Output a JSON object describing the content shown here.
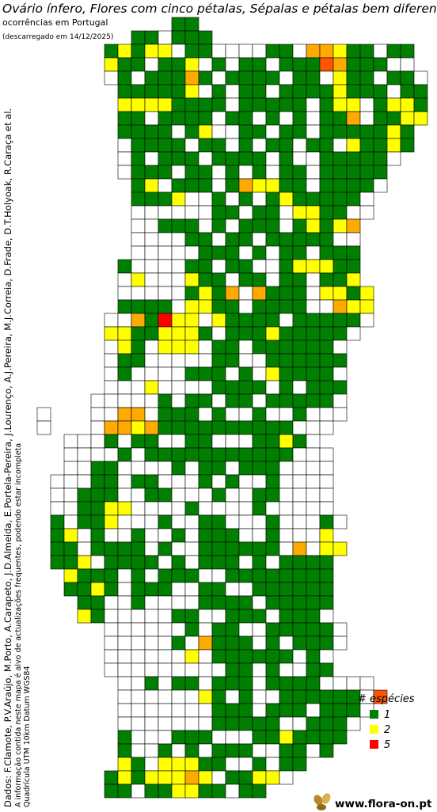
{
  "header": {
    "title": "Ovário ínfero, Flores com cinco pétalas, Sépalas e pétalas bem diferenciadas",
    "subtitle": "ocorrências em Portugal",
    "date": "(descarregado em 14/12/2025)"
  },
  "credits": {
    "data": "Dados: F.Clamote, P.V.Araújo, M.Porto, A.Carapeto, J.D.Almeida, E.Portela-Pereira, J.Lourenço, A.J.Pereira, M.J.Correia, D.Frade, D.T.Holyoak, R.Caraça et al.",
    "note": "A informação contida neste mapa é alvo de actualizações frequentes, podendo estar incompleta",
    "grid": "Quadrícula UTM 10km Datum WGS84"
  },
  "legend": {
    "title": "# espécies",
    "items": [
      {
        "value": 1,
        "color": "#007f00"
      },
      {
        "value": 2,
        "color": "#ffff00"
      },
      {
        "value": 5,
        "color": "#ff0000"
      }
    ]
  },
  "logo": "www.flora-on.pt",
  "grid": {
    "rows": [
      [
        null,
        null,
        null,
        null,
        null,
        null,
        null,
        null,
        null,
        null,
        1,
        1
      ],
      [
        null,
        null,
        null,
        null,
        null,
        null,
        null,
        1,
        1,
        0,
        1,
        1,
        1
      ],
      [
        null,
        null,
        null,
        null,
        null,
        1,
        2,
        1,
        2,
        2,
        0,
        1,
        1,
        0,
        0,
        0,
        0,
        1,
        1,
        0,
        3,
        3,
        2,
        1,
        1,
        0,
        1,
        1
      ],
      [
        null,
        null,
        null,
        null,
        null,
        2,
        1,
        1,
        0,
        1,
        1,
        2,
        0,
        1,
        0,
        1,
        1,
        0,
        1,
        1,
        1,
        4,
        3,
        1,
        1,
        1,
        0,
        0
      ],
      [
        null,
        null,
        null,
        null,
        null,
        0,
        1,
        0,
        1,
        1,
        1,
        3,
        1,
        0,
        1,
        1,
        1,
        1,
        0,
        1,
        1,
        0,
        2,
        1,
        1,
        0,
        1,
        1,
        0
      ],
      [
        null,
        null,
        null,
        null,
        null,
        null,
        1,
        1,
        1,
        1,
        1,
        2,
        0,
        1,
        0,
        1,
        1,
        0,
        1,
        1,
        1,
        1,
        2,
        1,
        1,
        1,
        0,
        1,
        1
      ],
      [
        null,
        null,
        null,
        null,
        null,
        null,
        2,
        2,
        2,
        2,
        1,
        1,
        1,
        1,
        0,
        1,
        1,
        1,
        1,
        1,
        0,
        1,
        2,
        2,
        0,
        1,
        2,
        2,
        1
      ],
      [
        null,
        null,
        null,
        null,
        null,
        null,
        1,
        1,
        0,
        1,
        1,
        1,
        1,
        0,
        1,
        1,
        0,
        1,
        0,
        1,
        0,
        1,
        1,
        3,
        0,
        1,
        1,
        2,
        2
      ],
      [
        null,
        null,
        null,
        null,
        null,
        null,
        1,
        1,
        1,
        1,
        0,
        1,
        2,
        0,
        0,
        1,
        1,
        0,
        1,
        1,
        0,
        1,
        1,
        1,
        1,
        1,
        2,
        1
      ],
      [
        null,
        null,
        null,
        null,
        null,
        null,
        0,
        1,
        1,
        1,
        1,
        0,
        1,
        1,
        0,
        1,
        0,
        1,
        1,
        0,
        1,
        1,
        0,
        2,
        1,
        1,
        2,
        1
      ],
      [
        null,
        null,
        null,
        null,
        null,
        null,
        0,
        1,
        0,
        1,
        1,
        1,
        0,
        1,
        1,
        1,
        1,
        0,
        1,
        0,
        0,
        1,
        1,
        1,
        1,
        1,
        0
      ],
      [
        null,
        null,
        null,
        null,
        null,
        null,
        0,
        1,
        1,
        1,
        0,
        1,
        1,
        0,
        1,
        0,
        1,
        0,
        1,
        1,
        0,
        1,
        1,
        1,
        1,
        1
      ],
      [
        null,
        null,
        null,
        null,
        null,
        null,
        null,
        1,
        2,
        0,
        1,
        1,
        1,
        0,
        1,
        3,
        2,
        2,
        1,
        1,
        0,
        1,
        1,
        1,
        1,
        0
      ],
      [
        null,
        null,
        null,
        null,
        null,
        null,
        null,
        1,
        1,
        1,
        2,
        0,
        0,
        1,
        0,
        1,
        0,
        1,
        2,
        1,
        1,
        1,
        1,
        1,
        0
      ],
      [
        null,
        null,
        null,
        null,
        null,
        null,
        null,
        0,
        0,
        0,
        0,
        0,
        0,
        1,
        1,
        0,
        1,
        1,
        0,
        2,
        2,
        1,
        1,
        0,
        0
      ],
      [
        null,
        null,
        null,
        null,
        null,
        null,
        null,
        0,
        0,
        1,
        1,
        1,
        0,
        1,
        0,
        1,
        1,
        1,
        0,
        1,
        2,
        1,
        2,
        3
      ],
      [
        null,
        null,
        null,
        null,
        null,
        null,
        null,
        0,
        0,
        0,
        0,
        1,
        1,
        0,
        1,
        1,
        0,
        1,
        1,
        1,
        1,
        1,
        0,
        0
      ],
      [
        null,
        null,
        null,
        null,
        null,
        null,
        null,
        0,
        0,
        0,
        0,
        0,
        1,
        1,
        1,
        0,
        1,
        0,
        1,
        1,
        0,
        1,
        1,
        1
      ],
      [
        null,
        null,
        null,
        null,
        null,
        null,
        1,
        0,
        0,
        0,
        0,
        1,
        1,
        0,
        1,
        1,
        0,
        0,
        1,
        2,
        2,
        2,
        1,
        1
      ],
      [
        null,
        null,
        null,
        null,
        null,
        null,
        0,
        2,
        0,
        0,
        0,
        2,
        1,
        1,
        0,
        1,
        1,
        0,
        1,
        1,
        0,
        1,
        1,
        2
      ],
      [
        null,
        null,
        null,
        null,
        null,
        null,
        0,
        0,
        0,
        0,
        0,
        1,
        2,
        1,
        3,
        0,
        3,
        1,
        1,
        1,
        0,
        2,
        2,
        1,
        2
      ],
      [
        null,
        null,
        null,
        null,
        null,
        null,
        1,
        1,
        1,
        1,
        0,
        2,
        2,
        1,
        1,
        0,
        1,
        1,
        1,
        1,
        0,
        0,
        3,
        2,
        2
      ],
      [
        null,
        null,
        null,
        null,
        null,
        0,
        0,
        3,
        1,
        5,
        2,
        2,
        0,
        2,
        1,
        1,
        1,
        1,
        0,
        1,
        1,
        1,
        1,
        1,
        0
      ],
      [
        null,
        null,
        null,
        null,
        null,
        2,
        2,
        1,
        1,
        2,
        2,
        2,
        1,
        0,
        1,
        1,
        1,
        2,
        1,
        1,
        1,
        1,
        1,
        0
      ],
      [
        null,
        null,
        null,
        null,
        null,
        0,
        2,
        1,
        0,
        2,
        2,
        2,
        0,
        1,
        1,
        0,
        1,
        1,
        1,
        1,
        1,
        1,
        0
      ],
      [
        null,
        null,
        null,
        null,
        null,
        0,
        1,
        1,
        0,
        0,
        0,
        0,
        0,
        1,
        1,
        0,
        0,
        1,
        1,
        1,
        1,
        1,
        1
      ],
      [
        null,
        null,
        null,
        null,
        null,
        0,
        1,
        0,
        0,
        0,
        0,
        1,
        1,
        1,
        0,
        1,
        0,
        2,
        1,
        1,
        1,
        1,
        0
      ],
      [
        null,
        null,
        null,
        null,
        null,
        0,
        0,
        0,
        2,
        0,
        0,
        0,
        0,
        1,
        1,
        1,
        1,
        0,
        1,
        0,
        1,
        1,
        1
      ],
      [
        null,
        null,
        null,
        null,
        0,
        0,
        0,
        0,
        0,
        1,
        0,
        1,
        1,
        0,
        1,
        1,
        0,
        1,
        1,
        1,
        1,
        1,
        0
      ],
      [
        0,
        null,
        null,
        null,
        0,
        0,
        3,
        3,
        0,
        1,
        1,
        1,
        0,
        1,
        0,
        0,
        1,
        0,
        0,
        1,
        0,
        0,
        0
      ],
      [
        0,
        null,
        null,
        null,
        0,
        3,
        3,
        2,
        3,
        1,
        1,
        1,
        1,
        1,
        1,
        1,
        1,
        1,
        1,
        0,
        0,
        0
      ],
      [
        null,
        null,
        0,
        0,
        0,
        1,
        0,
        1,
        1,
        0,
        0,
        1,
        1,
        0,
        0,
        0,
        1,
        1,
        2,
        1,
        0
      ],
      [
        null,
        null,
        0,
        0,
        0,
        0,
        1,
        0,
        1,
        1,
        1,
        1,
        1,
        1,
        1,
        1,
        1,
        1,
        1,
        0,
        0,
        0
      ],
      [
        null,
        null,
        0,
        0,
        1,
        1,
        0,
        0,
        0,
        0,
        1,
        0,
        1,
        1,
        0,
        1,
        1,
        1,
        0,
        0,
        0,
        0
      ],
      [
        null,
        0,
        0,
        0,
        1,
        1,
        0,
        1,
        1,
        0,
        0,
        0,
        1,
        0,
        1,
        0,
        0,
        1,
        0,
        0,
        0,
        0
      ],
      [
        null,
        0,
        0,
        1,
        1,
        1,
        0,
        0,
        1,
        1,
        0,
        0,
        0,
        1,
        0,
        0,
        1,
        1,
        0,
        0,
        0,
        0
      ],
      [
        null,
        0,
        0,
        1,
        1,
        2,
        2,
        0,
        0,
        0,
        0,
        1,
        0,
        0,
        0,
        0,
        1,
        0,
        0,
        0,
        0,
        0
      ],
      [
        null,
        1,
        0,
        1,
        1,
        2,
        0,
        0,
        0,
        1,
        0,
        0,
        1,
        1,
        0,
        0,
        0,
        1,
        0,
        0,
        0,
        1,
        0
      ],
      [
        null,
        1,
        2,
        0,
        1,
        0,
        0,
        1,
        0,
        0,
        1,
        0,
        1,
        1,
        1,
        0,
        0,
        1,
        0,
        0,
        0,
        2
      ],
      [
        null,
        1,
        1,
        0,
        1,
        1,
        1,
        1,
        0,
        1,
        0,
        0,
        1,
        1,
        1,
        1,
        1,
        1,
        0,
        3,
        0,
        2,
        2
      ],
      [
        null,
        1,
        1,
        2,
        0,
        1,
        1,
        1,
        1,
        0,
        1,
        0,
        1,
        1,
        1,
        0,
        1,
        0,
        1,
        1,
        1,
        1
      ],
      [
        null,
        null,
        2,
        1,
        1,
        1,
        0,
        1,
        0,
        1,
        1,
        1,
        0,
        0,
        1,
        1,
        1,
        1,
        1,
        1,
        1,
        1
      ],
      [
        null,
        null,
        1,
        1,
        2,
        1,
        0,
        1,
        1,
        1,
        0,
        0,
        1,
        1,
        0,
        0,
        1,
        1,
        1,
        1,
        1,
        1
      ],
      [
        null,
        null,
        null,
        1,
        1,
        0,
        0,
        1,
        0,
        0,
        0,
        0,
        1,
        1,
        1,
        1,
        0,
        1,
        1,
        1,
        1,
        1
      ],
      [
        null,
        null,
        null,
        2,
        1,
        0,
        0,
        0,
        0,
        0,
        1,
        1,
        0,
        0,
        1,
        1,
        1,
        0,
        1,
        1,
        1,
        0
      ],
      [
        null,
        null,
        null,
        null,
        null,
        0,
        0,
        0,
        0,
        0,
        0,
        1,
        0,
        1,
        1,
        0,
        0,
        1,
        1,
        1,
        1,
        1,
        0
      ],
      [
        null,
        null,
        null,
        null,
        null,
        0,
        0,
        0,
        0,
        0,
        1,
        0,
        3,
        1,
        1,
        1,
        0,
        1,
        0,
        1,
        1,
        1,
        0
      ],
      [
        null,
        null,
        null,
        null,
        null,
        0,
        0,
        0,
        0,
        0,
        0,
        2,
        0,
        1,
        1,
        1,
        1,
        1,
        1,
        0,
        1,
        0
      ],
      [
        null,
        null,
        null,
        null,
        null,
        0,
        0,
        0,
        0,
        0,
        0,
        0,
        0,
        0,
        1,
        1,
        0,
        1,
        0,
        0,
        1,
        1
      ],
      [
        null,
        null,
        null,
        null,
        null,
        null,
        0,
        0,
        1,
        0,
        1,
        1,
        0,
        1,
        1,
        1,
        0,
        1,
        1,
        1,
        1,
        0,
        0,
        0,
        0
      ],
      [
        null,
        null,
        null,
        null,
        null,
        null,
        0,
        0,
        0,
        0,
        0,
        0,
        2,
        1,
        0,
        1,
        0,
        0,
        1,
        1,
        1,
        1,
        1,
        1,
        0,
        4
      ],
      [
        null,
        null,
        null,
        null,
        null,
        null,
        0,
        0,
        0,
        0,
        0,
        0,
        0,
        1,
        1,
        1,
        0,
        1,
        1,
        1,
        0,
        1,
        1,
        1,
        0
      ],
      [
        null,
        null,
        null,
        null,
        null,
        null,
        0,
        0,
        0,
        0,
        0,
        0,
        0,
        1,
        1,
        1,
        1,
        1,
        0,
        0,
        1,
        1,
        1,
        0
      ],
      [
        null,
        null,
        null,
        null,
        null,
        null,
        1,
        0,
        0,
        0,
        1,
        1,
        1,
        0,
        0,
        0,
        1,
        1,
        2,
        1,
        1,
        1,
        1
      ],
      [
        null,
        null,
        null,
        null,
        null,
        null,
        1,
        0,
        0,
        1,
        0,
        1,
        0,
        1,
        1,
        1,
        0,
        0,
        1,
        1,
        0,
        1
      ],
      [
        null,
        null,
        null,
        null,
        null,
        null,
        2,
        1,
        0,
        2,
        2,
        2,
        1,
        1,
        0,
        0,
        1,
        0,
        1,
        1
      ],
      [
        null,
        null,
        null,
        null,
        null,
        1,
        2,
        1,
        2,
        2,
        2,
        3,
        2,
        0,
        1,
        1,
        2,
        2,
        0
      ],
      [
        null,
        null,
        null,
        null,
        null,
        1,
        1,
        0,
        1,
        1,
        2,
        2,
        1,
        1,
        0,
        1,
        1
      ]
    ]
  }
}
